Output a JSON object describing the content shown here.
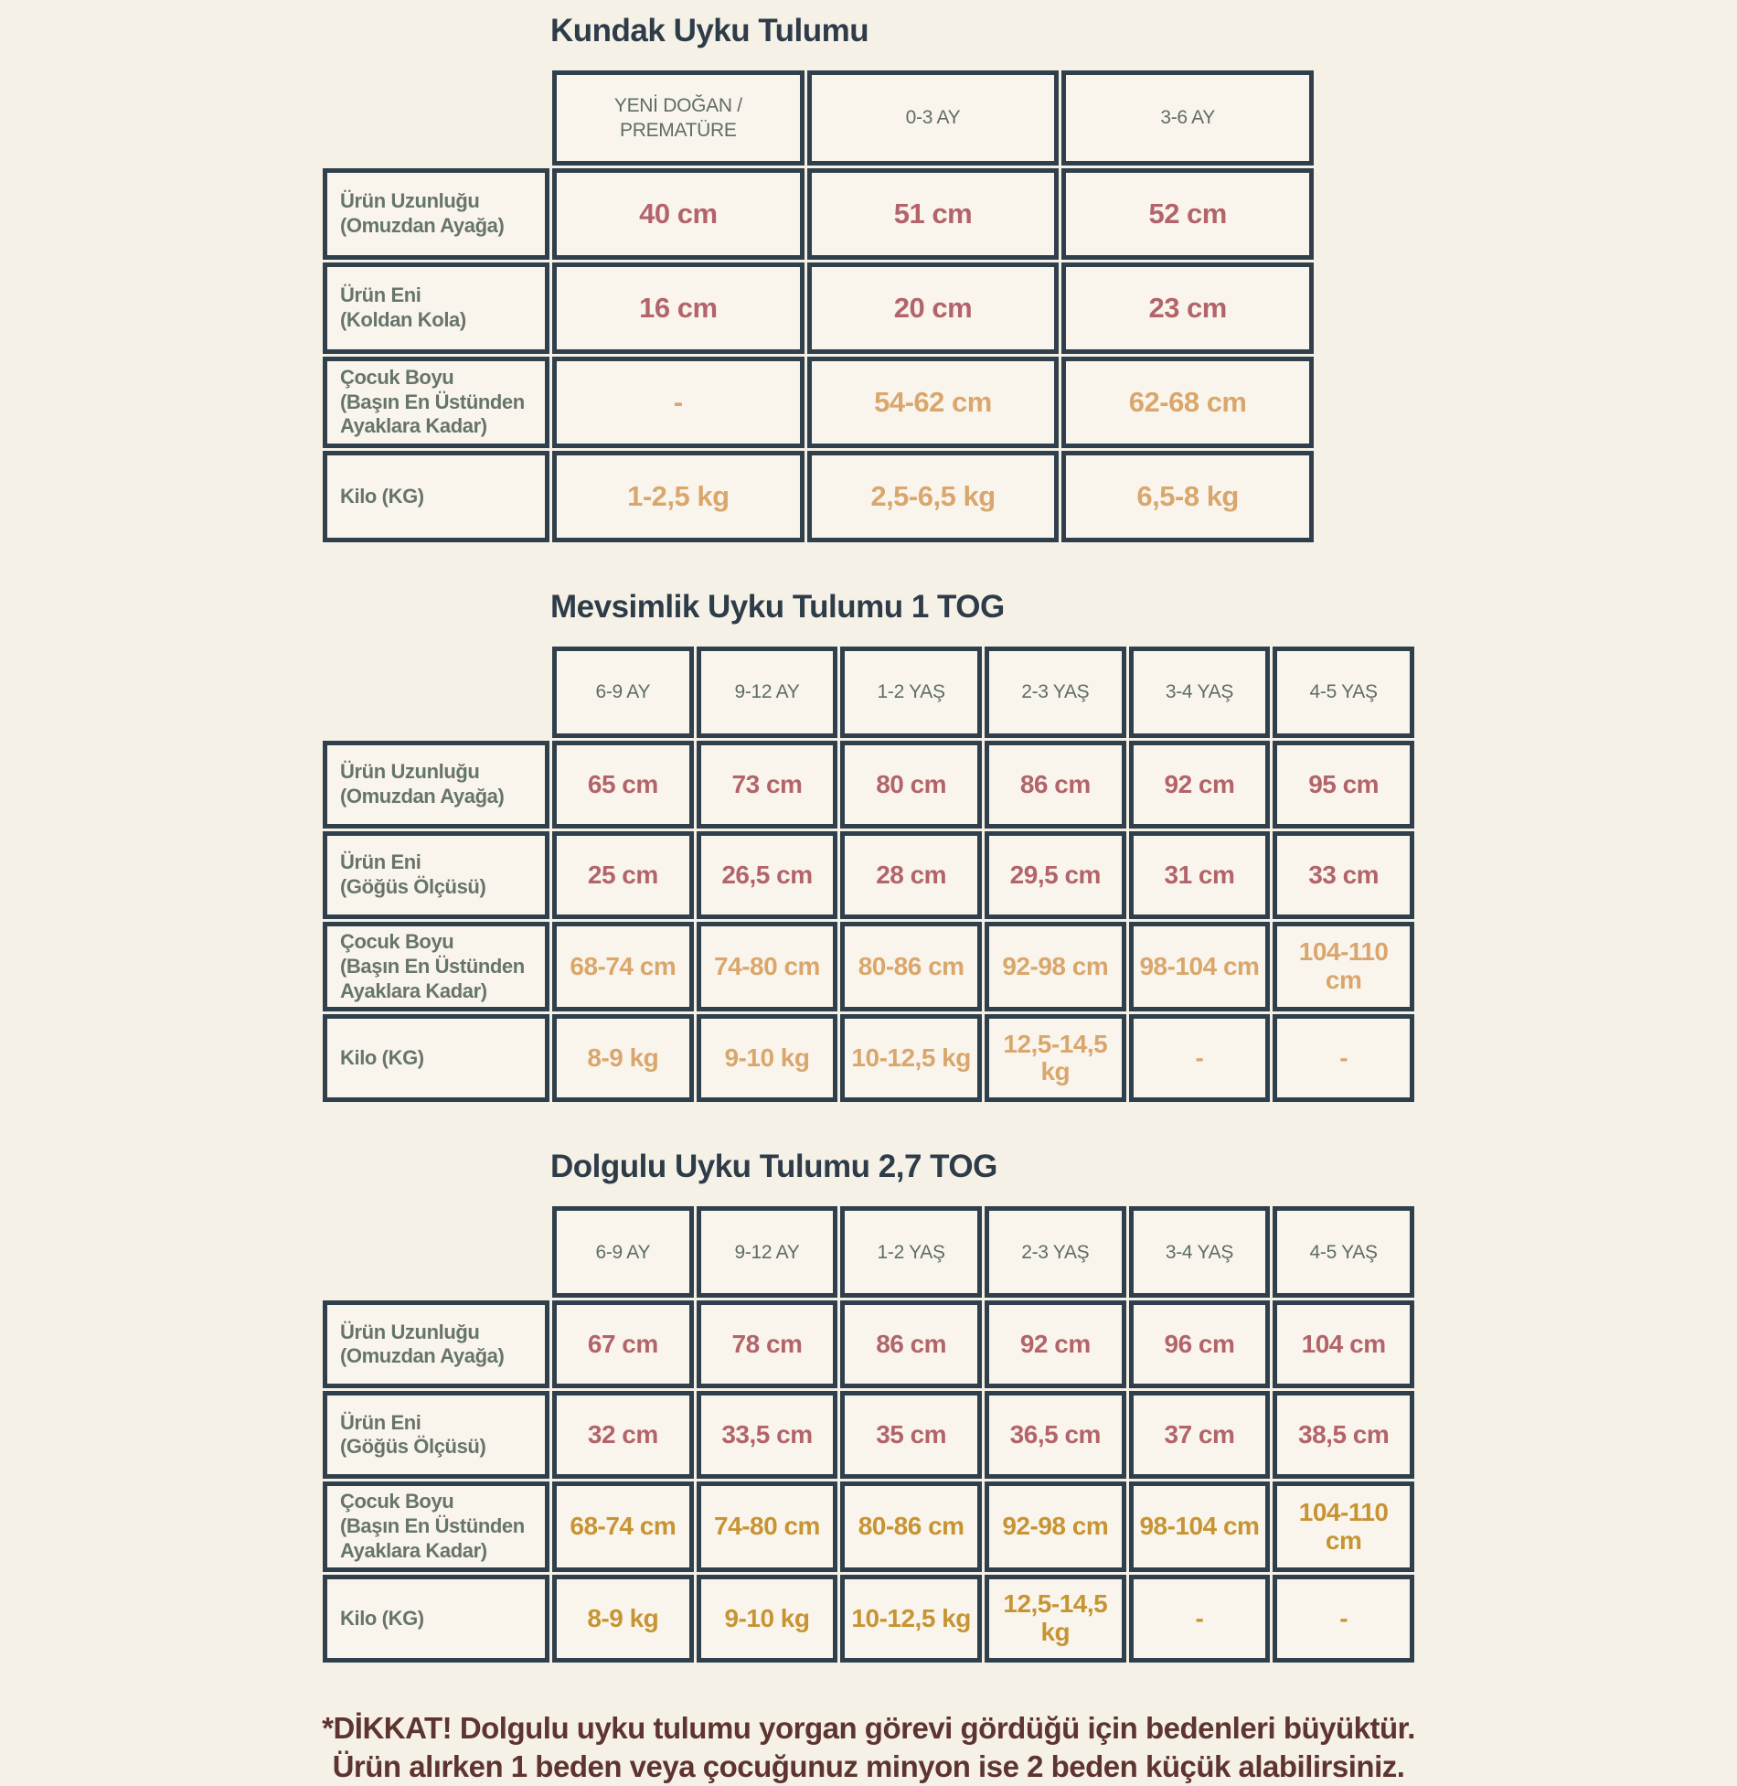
{
  "palette": {
    "red": "#b2646a",
    "tan": "#d9a76d",
    "gold": "#c79434",
    "title_slate": "#2d3c48",
    "label_green": "#66756b",
    "header_green": "#5e6d64",
    "border": "#2f404c",
    "page_bg": "#f6f1e7",
    "cell_bg": "#faf5ec",
    "footer_maroon": "#5e3430"
  },
  "tables": [
    {
      "title": "Kundak Uyku Tulumu",
      "columns": [
        "YENİ DOĞAN / PREMATÜRE",
        "0-3 AY",
        "3-6 AY"
      ],
      "rows": [
        {
          "label_lines": [
            "Ürün Uzunluğu",
            "(Omuzdan Ayağa)"
          ],
          "value_color": "red",
          "values": [
            "40 cm",
            "51 cm",
            "52 cm"
          ]
        },
        {
          "label_lines": [
            "Ürün Eni",
            "(Koldan Kola)"
          ],
          "value_color": "red",
          "values": [
            "16 cm",
            "20 cm",
            "23 cm"
          ]
        },
        {
          "label_lines": [
            "Çocuk Boyu",
            "(Başın En Üstünden",
            "Ayaklara Kadar)"
          ],
          "value_color": "tan",
          "values": [
            "-",
            "54-62 cm",
            "62-68 cm"
          ]
        },
        {
          "label_lines": [
            "Kilo (KG)"
          ],
          "value_color": "tan",
          "values": [
            "1-2,5 kg",
            "2,5-6,5 kg",
            "6,5-8 kg"
          ]
        }
      ]
    },
    {
      "title": "Mevsimlik Uyku Tulumu 1 TOG",
      "columns": [
        "6-9 AY",
        "9-12 AY",
        "1-2 YAŞ",
        "2-3 YAŞ",
        "3-4 YAŞ",
        "4-5 YAŞ"
      ],
      "rows": [
        {
          "label_lines": [
            "Ürün Uzunluğu",
            "(Omuzdan Ayağa)"
          ],
          "value_color": "red",
          "values": [
            "65 cm",
            "73 cm",
            "80 cm",
            "86 cm",
            "92 cm",
            "95 cm"
          ]
        },
        {
          "label_lines": [
            "Ürün Eni",
            "(Göğüs Ölçüsü)"
          ],
          "value_color": "red",
          "values": [
            "25 cm",
            "26,5 cm",
            "28 cm",
            "29,5 cm",
            "31 cm",
            "33 cm"
          ]
        },
        {
          "label_lines": [
            "Çocuk Boyu",
            "(Başın En Üstünden",
            "Ayaklara Kadar)"
          ],
          "value_color": "tan",
          "values": [
            "68-74 cm",
            "74-80 cm",
            "80-86 cm",
            "92-98 cm",
            "98-104 cm",
            "104-110 cm"
          ]
        },
        {
          "label_lines": [
            "Kilo (KG)"
          ],
          "value_color": "tan",
          "values": [
            "8-9 kg",
            "9-10 kg",
            "10-12,5 kg",
            "12,5-14,5 kg",
            "-",
            "-"
          ]
        }
      ]
    },
    {
      "title": "Dolgulu Uyku Tulumu 2,7 TOG",
      "columns": [
        "6-9 AY",
        "9-12 AY",
        "1-2 YAŞ",
        "2-3 YAŞ",
        "3-4 YAŞ",
        "4-5 YAŞ"
      ],
      "rows": [
        {
          "label_lines": [
            "Ürün Uzunluğu",
            "(Omuzdan Ayağa)"
          ],
          "value_color": "red",
          "values": [
            "67 cm",
            "78 cm",
            "86 cm",
            "92 cm",
            "96 cm",
            "104 cm"
          ]
        },
        {
          "label_lines": [
            "Ürün Eni",
            "(Göğüs Ölçüsü)"
          ],
          "value_color": "red",
          "values": [
            "32 cm",
            "33,5 cm",
            "35 cm",
            "36,5 cm",
            "37 cm",
            "38,5 cm"
          ]
        },
        {
          "label_lines": [
            "Çocuk Boyu",
            "(Başın En Üstünden",
            "Ayaklara Kadar)"
          ],
          "value_color": "gold",
          "values": [
            "68-74 cm",
            "74-80 cm",
            "80-86 cm",
            "92-98 cm",
            "98-104 cm",
            "104-110 cm"
          ]
        },
        {
          "label_lines": [
            "Kilo (KG)"
          ],
          "value_color": "gold",
          "values": [
            "8-9 kg",
            "9-10 kg",
            "10-12,5 kg",
            "12,5-14,5 kg",
            "-",
            "-"
          ]
        }
      ]
    }
  ],
  "footer": {
    "line1": "*DİKKAT! Dolgulu uyku tulumu yorgan görevi gördüğü için bedenleri büyüktür.",
    "line2": "Ürün alırken 1 beden veya çocuğunuz minyon ise 2 beden küçük alabilirsiniz."
  }
}
